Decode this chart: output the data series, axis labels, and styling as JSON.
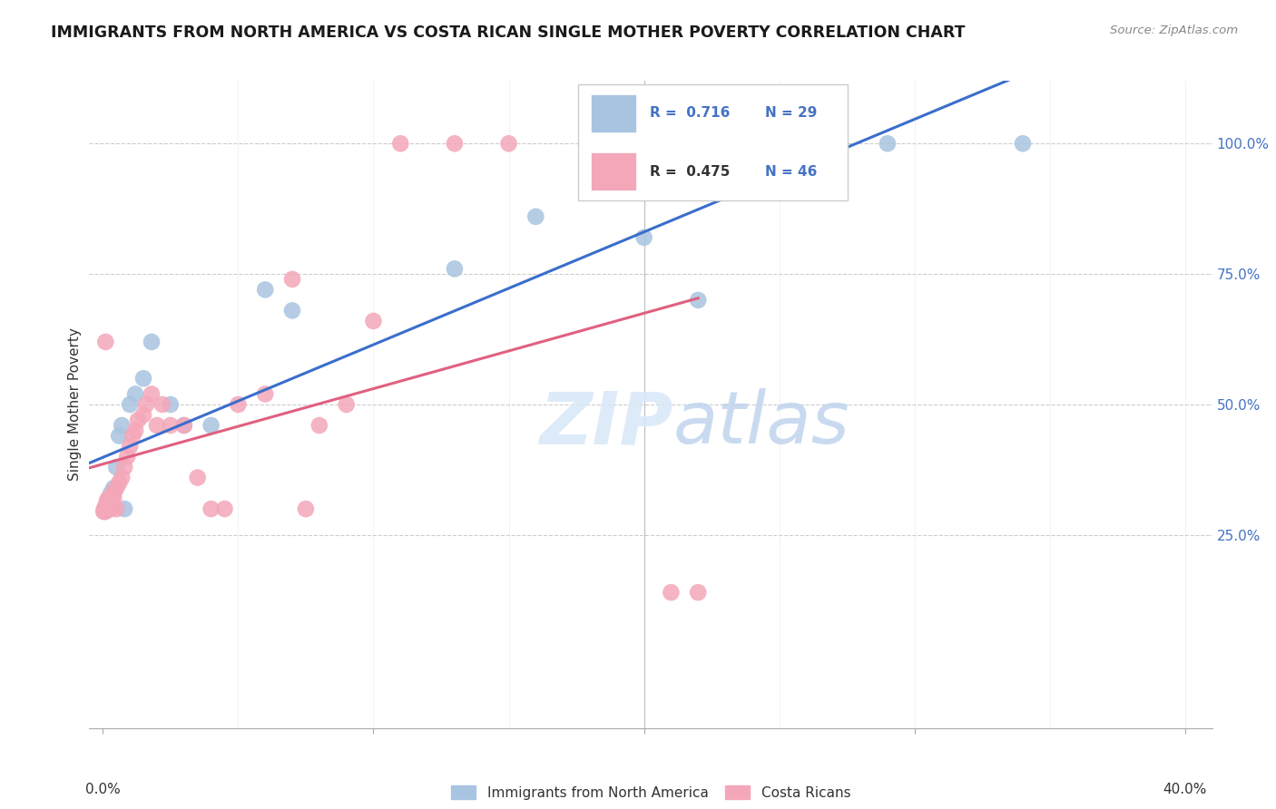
{
  "title": "IMMIGRANTS FROM NORTH AMERICA VS COSTA RICAN SINGLE MOTHER POVERTY CORRELATION CHART",
  "source": "Source: ZipAtlas.com",
  "ylabel": "Single Mother Poverty",
  "blue_R": 0.716,
  "blue_N": 29,
  "pink_R": 0.475,
  "pink_N": 46,
  "blue_color": "#a8c4e0",
  "pink_color": "#f4a7b9",
  "blue_line_color": "#3a6ecc",
  "pink_line_color": "#e06080",
  "legend_label_blue": "Immigrants from North America",
  "legend_label_pink": "Costa Ricans",
  "blue_x": [
    0.0005,
    0.001,
    0.0015,
    0.0015,
    0.002,
    0.002,
    0.003,
    0.003,
    0.004,
    0.005,
    0.006,
    0.007,
    0.008,
    0.01,
    0.012,
    0.015,
    0.018,
    0.025,
    0.03,
    0.04,
    0.06,
    0.07,
    0.13,
    0.16,
    0.18,
    0.2,
    0.22,
    0.29,
    0.34
  ],
  "blue_y": [
    0.295,
    0.3,
    0.305,
    0.31,
    0.3,
    0.315,
    0.32,
    0.33,
    0.34,
    0.38,
    0.44,
    0.46,
    0.3,
    0.5,
    0.52,
    0.55,
    0.62,
    0.5,
    0.46,
    0.46,
    0.72,
    0.68,
    0.76,
    0.86,
    1.0,
    0.82,
    0.7,
    1.0,
    1.0
  ],
  "pink_x": [
    0.0003,
    0.0005,
    0.001,
    0.001,
    0.001,
    0.0015,
    0.0015,
    0.002,
    0.002,
    0.003,
    0.003,
    0.004,
    0.004,
    0.005,
    0.005,
    0.006,
    0.007,
    0.008,
    0.009,
    0.01,
    0.011,
    0.012,
    0.013,
    0.015,
    0.016,
    0.018,
    0.02,
    0.022,
    0.025,
    0.03,
    0.035,
    0.04,
    0.045,
    0.05,
    0.06,
    0.07,
    0.075,
    0.08,
    0.09,
    0.1,
    0.11,
    0.13,
    0.15,
    0.2,
    0.21,
    0.22
  ],
  "pink_y": [
    0.295,
    0.3,
    0.295,
    0.305,
    0.62,
    0.3,
    0.315,
    0.3,
    0.32,
    0.3,
    0.315,
    0.32,
    0.33,
    0.3,
    0.34,
    0.35,
    0.36,
    0.38,
    0.4,
    0.42,
    0.44,
    0.45,
    0.47,
    0.48,
    0.5,
    0.52,
    0.46,
    0.5,
    0.46,
    0.46,
    0.36,
    0.3,
    0.3,
    0.5,
    0.52,
    0.74,
    0.3,
    0.46,
    0.5,
    0.66,
    1.0,
    1.0,
    1.0,
    1.0,
    0.14,
    0.14
  ],
  "xlim": [
    -0.005,
    0.41
  ],
  "ylim": [
    -0.12,
    1.12
  ],
  "xtick_vals": [
    0.0,
    0.1,
    0.2,
    0.3,
    0.4
  ],
  "xtick_labels": [
    "0.0%",
    "",
    "",
    "",
    "40.0%"
  ],
  "ytick_vals": [
    0.25,
    0.5,
    0.75,
    1.0
  ],
  "ytick_labels": [
    "25.0%",
    "50.0%",
    "75.0%",
    "100.0%"
  ]
}
